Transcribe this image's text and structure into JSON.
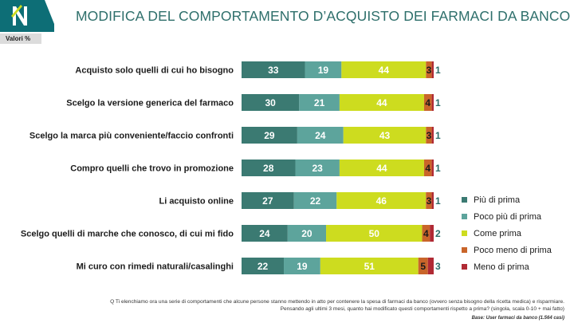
{
  "header": {
    "title": "MODIFICA DEL COMPORTAMENTO D’ACQUISTO DEI FARMACI DA BANCO",
    "values_badge": "Valori %"
  },
  "chart_data": {
    "type": "bar",
    "orientation": "horizontal",
    "stacked": true,
    "normalized": true,
    "categories": [
      "Acquisto solo quelli di cui ho bisogno",
      "Scelgo la versione generica del farmaco",
      "Scelgo la marca più conveniente/faccio confronti",
      "Compro quelli che trovo in promozione",
      "Li acquisto online",
      "Scelgo quelli di marche che conosco, di cui mi fido",
      "Mi curo con rimedi naturali/casalinghi"
    ],
    "series": [
      {
        "name": "Più di prima",
        "color": "#3b7a72",
        "values": [
          33,
          30,
          29,
          28,
          27,
          24,
          22
        ]
      },
      {
        "name": "Poco più di prima",
        "color": "#5da49c",
        "values": [
          19,
          21,
          24,
          23,
          22,
          20,
          19
        ]
      },
      {
        "name": "Come prima",
        "color": "#cddc1f",
        "values": [
          44,
          44,
          43,
          44,
          46,
          50,
          51
        ]
      },
      {
        "name": "Poco meno di prima",
        "color": "#c9652a",
        "values": [
          3,
          4,
          3,
          4,
          3,
          4,
          5
        ]
      },
      {
        "name": "Meno di prima",
        "color": "#b02a34",
        "values": [
          1,
          1,
          1,
          1,
          1,
          2,
          3
        ]
      }
    ],
    "legend_position": "right",
    "grid": false
  },
  "footer": {
    "note_line1": "Q  Ti elenchiamo ora una serie di comportamenti che alcune persone stanno mettendo in atto per contenere la spesa di farmaci da banco (ovvero senza bisogno della ricetta medica) e risparmiare.",
    "note_line2": "Pensando agli ultimi 3 mesi, quanto hai modificato questi comportamenti rispetto a prima? (singola, scala 0-10 + mai fatto)",
    "base": "Base: User farmaci da banco (1.564 casi)"
  }
}
